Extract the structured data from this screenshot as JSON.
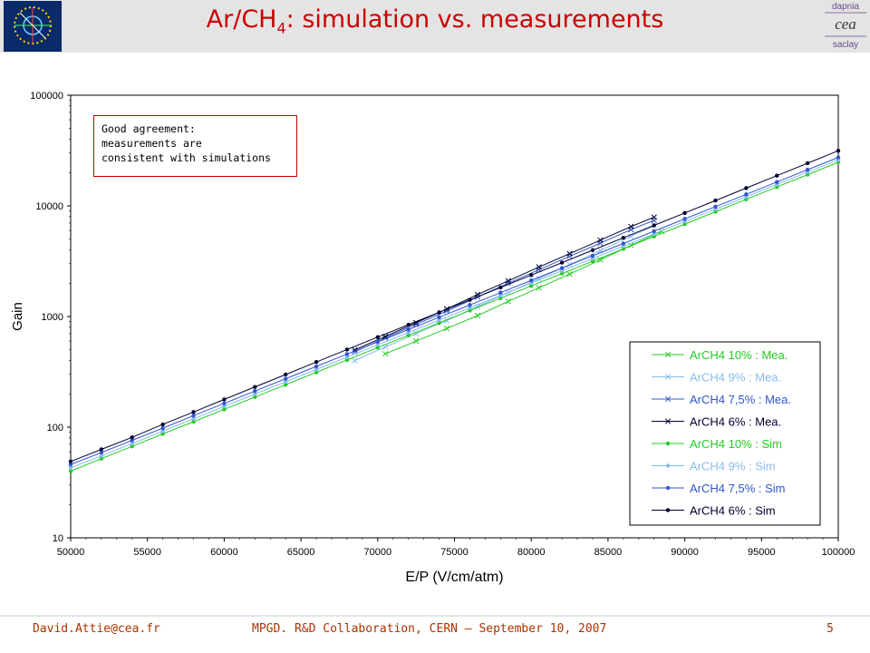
{
  "header": {
    "title_main": "Ar/CH",
    "title_sub": "4",
    "title_rest": ": simulation vs. measurements",
    "logo_right_lines": [
      "dapnia",
      "cea",
      "saclay"
    ]
  },
  "annotation": {
    "lines": [
      "Good agreement:",
      "measurements are",
      "consistent with simulations"
    ]
  },
  "footer": {
    "email": "David.Attie@cea.fr",
    "conference": "MPGD. R&D Collaboration, CERN – September 10, 2007",
    "page": "5"
  },
  "colors": {
    "title": "#cc0000",
    "footer_text": "#aa3300",
    "series_10": "#22cc22",
    "series_9": "#88bbee",
    "series_75": "#3355cc",
    "series_6": "#000033"
  },
  "chart_data": {
    "type": "line",
    "xlabel": "E/P (V/cm/atm)",
    "ylabel": "Gain",
    "xlim": [
      50000,
      100000
    ],
    "ylim": [
      10,
      100000
    ],
    "yscale": "log",
    "x_ticks": [
      "50000",
      "55000",
      "60000",
      "65000",
      "70000",
      "75000",
      "80000",
      "85000",
      "90000",
      "95000",
      "100000"
    ],
    "y_ticks": [
      "10",
      "100",
      "1000",
      "10000",
      "100000"
    ],
    "legend_position": "bottom-right",
    "series": [
      {
        "name": "ArCH4 10% : Mea.",
        "color": "#22cc22",
        "marker": "x",
        "x": [
          70500,
          72500,
          74500,
          76500,
          78500,
          80500,
          82500,
          84500,
          86500,
          88500
        ],
        "y": [
          460,
          600,
          780,
          1020,
          1370,
          1820,
          2420,
          3250,
          4400,
          5900
        ]
      },
      {
        "name": "ArCH4 9% : Mea.",
        "color": "#88bbee",
        "marker": "x",
        "x": [
          68500,
          70500,
          72500,
          74500,
          76500,
          78500,
          80500,
          82500,
          84500,
          86500,
          88000
        ],
        "y": [
          400,
          530,
          700,
          920,
          1230,
          1650,
          2200,
          2950,
          3950,
          5300,
          6600
        ]
      },
      {
        "name": "ArCH4 7,5% : Mea.",
        "color": "#3355cc",
        "marker": "x",
        "x": [
          68500,
          70500,
          72500,
          74500,
          76500,
          78500,
          80500,
          82500,
          84500,
          86500,
          88000
        ],
        "y": [
          480,
          640,
          850,
          1120,
          1500,
          2000,
          2650,
          3500,
          4600,
          6100,
          7400
        ]
      },
      {
        "name": "ArCH4 6% : Mea.",
        "color": "#000033",
        "marker": "x",
        "x": [
          68500,
          70500,
          72500,
          74500,
          76500,
          78500,
          80500,
          82500,
          84500,
          86500,
          88000
        ],
        "y": [
          500,
          660,
          880,
          1170,
          1580,
          2100,
          2800,
          3700,
          4900,
          6500,
          7900
        ]
      },
      {
        "name": "ArCH4 10% : Sim",
        "color": "#22cc22",
        "marker": "dot",
        "x": [
          50000,
          52000,
          54000,
          56000,
          58000,
          60000,
          62000,
          64000,
          66000,
          68000,
          70000,
          72000,
          74000,
          76000,
          78000,
          80000,
          82000,
          84000,
          86000,
          88000,
          90000,
          92000,
          94000,
          96000,
          98000,
          100000
        ],
        "y": [
          40,
          52,
          67,
          87,
          112,
          145,
          187,
          242,
          313,
          405,
          524,
          677,
          876,
          1132,
          1464,
          1893,
          2448,
          3165,
          4093,
          5293,
          6845,
          8852,
          11450,
          14810,
          19150,
          24800
        ]
      },
      {
        "name": "ArCH4 9% : Sim",
        "color": "#88bbee",
        "marker": "dot",
        "x": [
          50000,
          52000,
          54000,
          56000,
          58000,
          60000,
          62000,
          64000,
          66000,
          68000,
          70000,
          72000,
          74000,
          76000,
          78000,
          80000,
          82000,
          84000,
          86000,
          88000,
          90000,
          92000,
          94000,
          96000,
          98000,
          100000
        ],
        "y": [
          43,
          55,
          71,
          92,
          119,
          154,
          199,
          257,
          332,
          429,
          555,
          717,
          927,
          1198,
          1549,
          2002,
          2588,
          3345,
          4324,
          5590,
          7226,
          9341,
          12070,
          15610,
          20180,
          26100
        ]
      },
      {
        "name": "ArCH4 7,5% : Sim",
        "color": "#3355cc",
        "marker": "dot",
        "x": [
          50000,
          52000,
          54000,
          56000,
          58000,
          60000,
          62000,
          64000,
          66000,
          68000,
          70000,
          72000,
          74000,
          76000,
          78000,
          80000,
          82000,
          84000,
          86000,
          88000,
          90000,
          92000,
          94000,
          96000,
          98000,
          100000
        ],
        "y": [
          46,
          59,
          76,
          98,
          127,
          164,
          212,
          274,
          354,
          457,
          590,
          762,
          985,
          1272,
          1643,
          2122,
          2741,
          3540,
          4572,
          5905,
          7627,
          9851,
          12720,
          16430,
          21220,
          27400
        ]
      },
      {
        "name": "ArCH4 6% : Sim",
        "color": "#000033",
        "marker": "dot",
        "x": [
          50000,
          52000,
          54000,
          56000,
          58000,
          60000,
          62000,
          64000,
          66000,
          68000,
          70000,
          72000,
          74000,
          76000,
          78000,
          80000,
          82000,
          84000,
          86000,
          88000,
          90000,
          92000,
          94000,
          96000,
          98000,
          100000
        ],
        "y": [
          49,
          63,
          81,
          106,
          137,
          178,
          231,
          299,
          388,
          503,
          651,
          843,
          1091,
          1413,
          1830,
          2370,
          3069,
          3975,
          5148,
          6667,
          8634,
          11180,
          14480,
          18750,
          24290,
          31500
        ]
      }
    ]
  }
}
